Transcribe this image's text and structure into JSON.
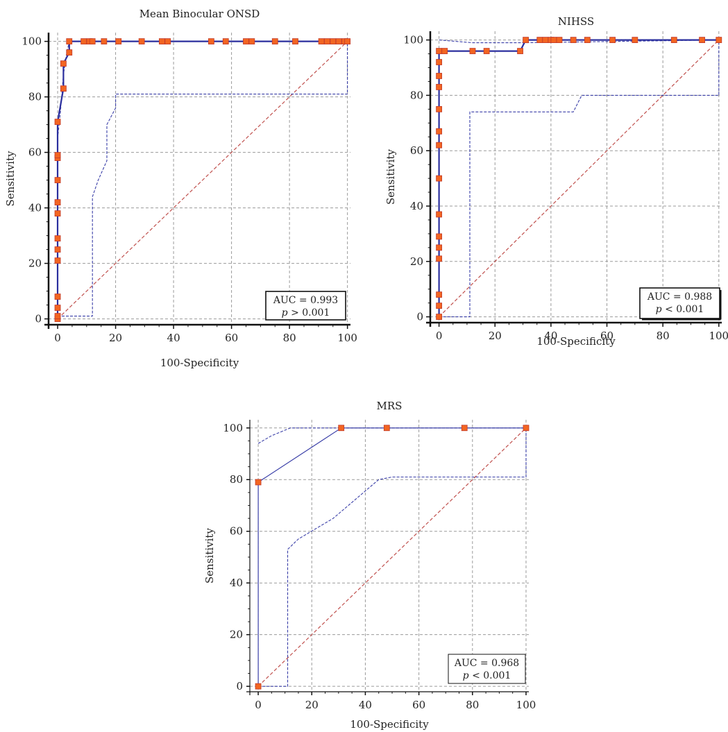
{
  "chart_data": [
    {
      "type": "line",
      "title": "Mean Binocular ONSD",
      "xlabel": "100-Specificity",
      "ylabel": "Sensitivity",
      "xlim": [
        0,
        100
      ],
      "ylim": [
        0,
        100
      ],
      "xticks": [
        "0",
        "20",
        "40",
        "60",
        "80",
        "100"
      ],
      "yticks": [
        "0",
        "20",
        "40",
        "60",
        "80",
        "100"
      ],
      "grid": true,
      "annotation": {
        "auc": "AUC = 0.993",
        "p_symbol": "p",
        "p_text": "> 0.001"
      },
      "colors": {
        "roc": "#2b2f9e",
        "ci": "#3a3fa8",
        "diagonal": "#c0504d",
        "marker": "#f26522",
        "marker_edge": "#c0392b"
      },
      "series": [
        {
          "points": [
            [
              0,
              0
            ],
            [
              0,
              1
            ],
            [
              0,
              4
            ],
            [
              0,
              8
            ],
            [
              0,
              21
            ],
            [
              0,
              25
            ],
            [
              0,
              29
            ],
            [
              0,
              38
            ],
            [
              0,
              42
            ],
            [
              0,
              50
            ],
            [
              0,
              58
            ],
            [
              0,
              59
            ],
            [
              0,
              71
            ],
            [
              2,
              83
            ],
            [
              2,
              92
            ],
            [
              4,
              96
            ],
            [
              4,
              100
            ],
            [
              9,
              100
            ],
            [
              11,
              100
            ],
            [
              12,
              100
            ],
            [
              16,
              100
            ],
            [
              21,
              100
            ],
            [
              29,
              100
            ],
            [
              36,
              100
            ],
            [
              38,
              100
            ],
            [
              53,
              100
            ],
            [
              58,
              100
            ],
            [
              65,
              100
            ],
            [
              67,
              100
            ],
            [
              75,
              100
            ],
            [
              82,
              100
            ],
            [
              91,
              100
            ],
            [
              93,
              100
            ],
            [
              95,
              100
            ],
            [
              97,
              100
            ],
            [
              99,
              100
            ],
            [
              100,
              100
            ]
          ]
        },
        {
          "points": [
            [
              0,
              65
            ],
            [
              1,
              75
            ],
            [
              2,
              88
            ],
            [
              3,
              95
            ],
            [
              4,
              100
            ],
            [
              100,
              100
            ]
          ]
        },
        {
          "points": [
            [
              0,
              1
            ],
            [
              12,
              1
            ],
            [
              12,
              44
            ],
            [
              14,
              50
            ],
            [
              17,
              57
            ],
            [
              17,
              70
            ],
            [
              20,
              76
            ],
            [
              20,
              81
            ],
            [
              100,
              81
            ],
            [
              100,
              100
            ]
          ]
        },
        {
          "points": [
            [
              0,
              0
            ],
            [
              100,
              100
            ]
          ]
        }
      ]
    },
    {
      "type": "line",
      "title": "NIHSS",
      "xlabel": "100-Specificity",
      "ylabel": "Sensitivity",
      "xlim": [
        0,
        100
      ],
      "ylim": [
        0,
        100
      ],
      "xticks": [
        "0",
        "20",
        "40",
        "60",
        "80",
        "100"
      ],
      "yticks": [
        "0",
        "20",
        "40",
        "60",
        "80",
        "100"
      ],
      "grid": true,
      "annotation": {
        "auc": "AUC = 0.988",
        "p_symbol": "p",
        "p_text": "< 0.001"
      },
      "colors": {
        "roc": "#2b2f9e",
        "ci": "#3a3fa8",
        "diagonal": "#c0504d",
        "marker": "#f26522",
        "marker_edge": "#c0392b"
      },
      "series": [
        {
          "points": [
            [
              0,
              0
            ],
            [
              0,
              4
            ],
            [
              0,
              8
            ],
            [
              0,
              21
            ],
            [
              0,
              25
            ],
            [
              0,
              29
            ],
            [
              0,
              37
            ],
            [
              0,
              50
            ],
            [
              0,
              62
            ],
            [
              0,
              67
            ],
            [
              0,
              75
            ],
            [
              0,
              83
            ],
            [
              0,
              87
            ],
            [
              0,
              92
            ],
            [
              0,
              96
            ],
            [
              2,
              96
            ],
            [
              12,
              96
            ],
            [
              17,
              96
            ],
            [
              29,
              96
            ],
            [
              31,
              100
            ],
            [
              36,
              100
            ],
            [
              38,
              100
            ],
            [
              40,
              100
            ],
            [
              41,
              100
            ],
            [
              43,
              100
            ],
            [
              48,
              100
            ],
            [
              53,
              100
            ],
            [
              62,
              100
            ],
            [
              70,
              100
            ],
            [
              84,
              100
            ],
            [
              94,
              100
            ],
            [
              100,
              100
            ]
          ]
        },
        {
          "points": [
            [
              0,
              100
            ],
            [
              12,
              99
            ],
            [
              30,
              99
            ],
            [
              100,
              100
            ]
          ]
        },
        {
          "points": [
            [
              0,
              0
            ],
            [
              11,
              0
            ],
            [
              11,
              74
            ],
            [
              30,
              74
            ],
            [
              48,
              74
            ],
            [
              51,
              80
            ],
            [
              100,
              80
            ],
            [
              100,
              100
            ]
          ]
        },
        {
          "points": [
            [
              0,
              0
            ],
            [
              100,
              100
            ]
          ]
        }
      ]
    },
    {
      "type": "line",
      "title": "MRS",
      "xlabel": "100-Specificity",
      "ylabel": "Sensitivity",
      "xlim": [
        0,
        100
      ],
      "ylim": [
        0,
        100
      ],
      "xticks": [
        "0",
        "20",
        "40",
        "60",
        "80",
        "100"
      ],
      "yticks": [
        "0",
        "20",
        "40",
        "60",
        "80",
        "100"
      ],
      "grid": true,
      "annotation": {
        "auc": "AUC = 0.968",
        "p_symbol": "p",
        "p_text": "< 0.001"
      },
      "colors": {
        "roc": "#3a3fa8",
        "ci": "#3a3fa8",
        "diagonal": "#c0504d",
        "marker": "#f26522",
        "marker_edge": "#c0392b"
      },
      "series": [
        {
          "points": [
            [
              0,
              0
            ],
            [
              0,
              79
            ],
            [
              31,
              100
            ],
            [
              48,
              100
            ],
            [
              77,
              100
            ],
            [
              100,
              100
            ]
          ]
        },
        {
          "points": [
            [
              0,
              94
            ],
            [
              5,
              97
            ],
            [
              12,
              100
            ],
            [
              31,
              100
            ],
            [
              100,
              100
            ]
          ]
        },
        {
          "points": [
            [
              0,
              0
            ],
            [
              11,
              0
            ],
            [
              11,
              53
            ],
            [
              15,
              57
            ],
            [
              28,
              65
            ],
            [
              45,
              80
            ],
            [
              50,
              81
            ],
            [
              100,
              81
            ],
            [
              100,
              100
            ]
          ]
        },
        {
          "points": [
            [
              0,
              0
            ],
            [
              100,
              100
            ]
          ]
        }
      ]
    }
  ]
}
